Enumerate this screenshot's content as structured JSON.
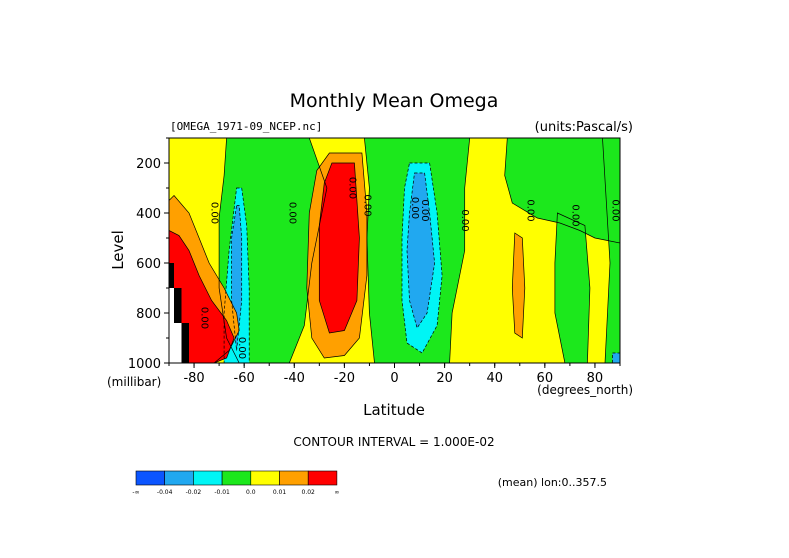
{
  "chart_data": {
    "type": "heatmap",
    "title": "Monthly Mean Omega",
    "source_label": "[OMEGA_1971-09_NCEP.nc]",
    "units_label": "(units:Pascal/s)",
    "xlabel": "Latitude",
    "x_unit_label": "(degrees_north)",
    "ylabel": "Level",
    "y_unit_label": "(millibar)",
    "xlim": [
      -90,
      90
    ],
    "ylim": [
      1000,
      100
    ],
    "x_ticks": [
      -80,
      -60,
      -40,
      -20,
      0,
      20,
      40,
      60,
      80
    ],
    "y_ticks": [
      200,
      400,
      600,
      800,
      1000
    ],
    "contour_interval_label": "CONTOUR INTERVAL = 1.000E-02",
    "subtitle_right": "(mean) lon:0..357.5",
    "colorbar": {
      "colors": [
        "#0b55ff",
        "#21a8f0",
        "#00f5f5",
        "#1ce81c",
        "#ffff00",
        "#ffa000",
        "#ff0000"
      ],
      "labels": [
        "-∞",
        "-0.04",
        "-0.02",
        "-0.01",
        "0.0",
        "0.01",
        "0.02",
        "∞"
      ]
    },
    "contour_labels": [
      {
        "text": "0.00",
        "lat": -73,
        "lev": 400
      },
      {
        "text": "0.00",
        "lat": -42,
        "lev": 400
      },
      {
        "text": "0.00",
        "lat": -18,
        "lev": 300
      },
      {
        "text": "0.00",
        "lat": -12,
        "lev": 370
      },
      {
        "text": "0.00",
        "lat": 7,
        "lev": 380
      },
      {
        "text": "0.00",
        "lat": 11,
        "lev": 390
      },
      {
        "text": "0.00",
        "lat": 27,
        "lev": 430
      },
      {
        "text": "0.00",
        "lat": 53,
        "lev": 390
      },
      {
        "text": "0.00",
        "lat": 71,
        "lev": 410
      },
      {
        "text": "0.00",
        "lat": 87,
        "lev": 390
      },
      {
        "text": "0.00",
        "lat": -62,
        "lev": 940
      },
      {
        "text": "0.00",
        "lat": -77,
        "lev": 820
      }
    ],
    "bands": [
      {
        "color": "#ffff00",
        "pts": [
          [
            -90,
            100
          ],
          [
            90,
            100
          ],
          [
            90,
            1000
          ],
          [
            -90,
            1000
          ]
        ]
      },
      {
        "color": "#1ce81c",
        "pts": [
          [
            -67,
            100
          ],
          [
            -34,
            100
          ],
          [
            -27,
            300
          ],
          [
            -33,
            600
          ],
          [
            -36,
            850
          ],
          [
            -42,
            1000
          ],
          [
            -62,
            1000
          ],
          [
            -67,
            900
          ],
          [
            -70,
            700
          ],
          [
            -70,
            420
          ],
          [
            -68,
            250
          ]
        ]
      },
      {
        "color": "#1ce81c",
        "pts": [
          [
            -12,
            100
          ],
          [
            30,
            100
          ],
          [
            28,
            300
          ],
          [
            28,
            550
          ],
          [
            23,
            800
          ],
          [
            22,
            1000
          ],
          [
            -8,
            1000
          ],
          [
            -10,
            800
          ],
          [
            -11,
            500
          ],
          [
            -10,
            300
          ]
        ]
      },
      {
        "color": "#1ce81c",
        "pts": [
          [
            45,
            100
          ],
          [
            90,
            100
          ],
          [
            90,
            520
          ],
          [
            80,
            500
          ],
          [
            74,
            470
          ],
          [
            66,
            440
          ],
          [
            57,
            420
          ],
          [
            47,
            360
          ],
          [
            44,
            250
          ]
        ]
      },
      {
        "color": "#1ce81c",
        "pts": [
          [
            65,
            400
          ],
          [
            76,
            450
          ],
          [
            78,
            700
          ],
          [
            77,
            1000
          ],
          [
            68,
            1000
          ],
          [
            64,
            800
          ],
          [
            64,
            600
          ]
        ]
      },
      {
        "color": "#1ce81c",
        "pts": [
          [
            83,
            100
          ],
          [
            90,
            100
          ],
          [
            90,
            1000
          ],
          [
            84,
            1000
          ],
          [
            85,
            800
          ],
          [
            86,
            600
          ]
        ]
      },
      {
        "color": "#00f5f5",
        "pts": [
          [
            -63,
            300
          ],
          [
            -61,
            300
          ],
          [
            -59,
            450
          ],
          [
            -58,
            700
          ],
          [
            -58,
            1000
          ],
          [
            -68,
            1000
          ],
          [
            -68,
            800
          ],
          [
            -66,
            550
          ]
        ]
      },
      {
        "color": "#00f5f5",
        "pts": [
          [
            6,
            200
          ],
          [
            14,
            200
          ],
          [
            17,
            400
          ],
          [
            19,
            650
          ],
          [
            17,
            850
          ],
          [
            11,
            960
          ],
          [
            5,
            920
          ],
          [
            3,
            750
          ],
          [
            3,
            500
          ],
          [
            4,
            300
          ]
        ]
      },
      {
        "color": "#21a8f0",
        "pts": [
          [
            -63,
            370
          ],
          [
            -62,
            370
          ],
          [
            -61,
            500
          ],
          [
            -61,
            750
          ],
          [
            -63,
            950
          ],
          [
            -65,
            750
          ],
          [
            -65,
            500
          ]
        ]
      },
      {
        "color": "#21a8f0",
        "pts": [
          [
            8,
            240
          ],
          [
            12,
            240
          ],
          [
            14,
            400
          ],
          [
            16,
            600
          ],
          [
            13,
            800
          ],
          [
            9,
            860
          ],
          [
            6,
            750
          ],
          [
            5,
            550
          ],
          [
            6,
            400
          ]
        ]
      },
      {
        "color": "#ffa000",
        "pts": [
          [
            -26,
            160
          ],
          [
            -13,
            160
          ],
          [
            -11,
            400
          ],
          [
            -11,
            650
          ],
          [
            -14,
            900
          ],
          [
            -20,
            970
          ],
          [
            -28,
            980
          ],
          [
            -33,
            900
          ],
          [
            -35,
            700
          ],
          [
            -34,
            400
          ],
          [
            -31,
            230
          ]
        ]
      },
      {
        "color": "#ffa000",
        "pts": [
          [
            -88,
            330
          ],
          [
            -82,
            400
          ],
          [
            -78,
            500
          ],
          [
            -74,
            600
          ],
          [
            -68,
            700
          ],
          [
            -63,
            800
          ],
          [
            -62,
            870
          ],
          [
            -66,
            950
          ],
          [
            -72,
            1000
          ],
          [
            -90,
            1000
          ],
          [
            -90,
            350
          ]
        ]
      },
      {
        "color": "#ffa000",
        "pts": [
          [
            48,
            480
          ],
          [
            51,
            500
          ],
          [
            52,
            700
          ],
          [
            51,
            900
          ],
          [
            48,
            880
          ],
          [
            47,
            700
          ]
        ]
      },
      {
        "color": "#ff0000",
        "pts": [
          [
            -25,
            200
          ],
          [
            -16,
            200
          ],
          [
            -14,
            500
          ],
          [
            -15,
            750
          ],
          [
            -20,
            870
          ],
          [
            -26,
            880
          ],
          [
            -30,
            750
          ],
          [
            -30,
            450
          ],
          [
            -28,
            280
          ]
        ]
      },
      {
        "color": "#ff0000",
        "pts": [
          [
            -90,
            470
          ],
          [
            -86,
            490
          ],
          [
            -82,
            550
          ],
          [
            -78,
            650
          ],
          [
            -73,
            750
          ],
          [
            -67,
            830
          ],
          [
            -64,
            900
          ],
          [
            -67,
            980
          ],
          [
            -72,
            1000
          ],
          [
            -90,
            1000
          ]
        ]
      },
      {
        "color": "#000000",
        "pts": [
          [
            -90,
            600
          ],
          [
            -88,
            600
          ],
          [
            -88,
            700
          ],
          [
            -85,
            700
          ],
          [
            -85,
            840
          ],
          [
            -82,
            840
          ],
          [
            -82,
            1000
          ],
          [
            -90,
            1000
          ]
        ]
      },
      {
        "color": "#ffffff",
        "pts": [
          [
            -90,
            700
          ],
          [
            -88,
            700
          ],
          [
            -88,
            840
          ],
          [
            -85,
            840
          ],
          [
            -85,
            1000
          ],
          [
            -90,
            1000
          ]
        ]
      },
      {
        "color": "#21a8f0",
        "pts": [
          [
            87,
            960
          ],
          [
            90,
            960
          ],
          [
            90,
            1000
          ],
          [
            87,
            1000
          ]
        ]
      }
    ]
  }
}
